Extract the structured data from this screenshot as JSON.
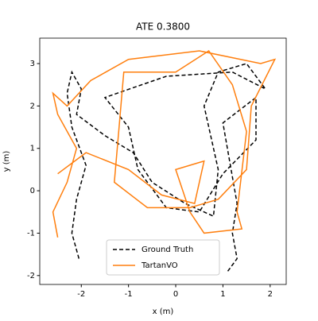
{
  "chart_data": {
    "type": "line",
    "title": "ATE 0.3800",
    "x_label": "x (m)",
    "y_label": "y (m)",
    "xlim": [
      -2.88,
      2.34
    ],
    "ylim": [
      -2.21,
      3.6
    ],
    "xticks": [
      -2,
      -1,
      0,
      1,
      2
    ],
    "yticks": [
      -2,
      -1,
      0,
      1,
      2,
      3
    ],
    "legend": "lower center",
    "series": [
      {
        "name": "Ground Truth",
        "color": "#000000",
        "dashed": true,
        "x": [
          -2.05,
          -2.2,
          -2.1,
          -1.9,
          -2.2,
          -2.3,
          -2.2,
          -2.0,
          -2.1,
          -1.5,
          -0.9,
          -0.5,
          0.2,
          0.8,
          0.9,
          0.6,
          0.9,
          1.5,
          1.9,
          1.2,
          -0.2,
          -1.5,
          -1.0,
          -0.8,
          -0.2,
          0.5,
          1.0,
          1.7,
          1.7,
          1.0,
          1.3,
          1.2,
          1.3,
          1.1
        ],
        "values": [
          -1.6,
          -1.0,
          -0.2,
          0.6,
          1.5,
          2.3,
          2.8,
          2.4,
          1.8,
          1.3,
          0.9,
          0.2,
          -0.3,
          -0.6,
          0.5,
          2.0,
          2.8,
          3.0,
          2.4,
          2.8,
          2.7,
          2.2,
          1.5,
          0.5,
          -0.4,
          -0.5,
          0.4,
          1.2,
          2.2,
          1.6,
          -0.3,
          -1.0,
          -1.6,
          -1.9
        ]
      },
      {
        "name": "TartanVO",
        "color": "#ff7f0e",
        "dashed": false,
        "x": [
          -2.5,
          -2.6,
          -2.3,
          -2.1,
          -2.5,
          -2.6,
          -2.3,
          -1.8,
          -1.0,
          0.5,
          1.8,
          2.1,
          1.6,
          1.5,
          0.9,
          0.3,
          -0.6,
          -1.3,
          -1.2,
          -1.1,
          0.0,
          0.7,
          1.2,
          1.5,
          1.3,
          1.4,
          0.6,
          0.3,
          0.0,
          0.6,
          0.4,
          -0.3,
          -1.0,
          -1.9,
          -2.5
        ],
        "values": [
          -1.1,
          -0.5,
          0.2,
          1.0,
          1.8,
          2.3,
          2.0,
          2.6,
          3.1,
          3.3,
          3.0,
          3.1,
          2.0,
          0.5,
          -0.2,
          -0.4,
          -0.4,
          0.2,
          1.5,
          2.8,
          2.8,
          3.3,
          2.5,
          1.4,
          -0.5,
          -0.9,
          -1.0,
          -0.5,
          0.5,
          0.7,
          -0.3,
          -0.1,
          0.5,
          0.9,
          0.4
        ]
      }
    ]
  }
}
